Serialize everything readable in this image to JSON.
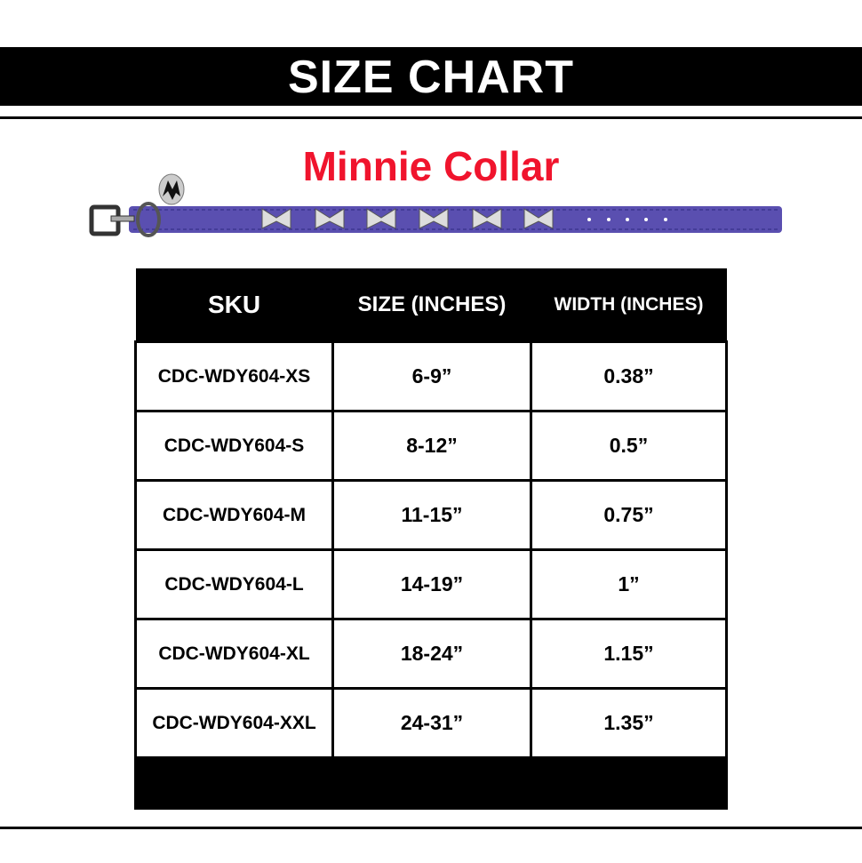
{
  "banner": {
    "title": "SIZE CHART"
  },
  "product": {
    "name": "Minnie Collar",
    "collar_color": "#5a4fb0",
    "title_color": "#f0142d"
  },
  "table": {
    "headers": [
      "SKU",
      "SIZE (INCHES)",
      "WIDTH (INCHES)"
    ],
    "rows": [
      [
        "CDC-WDY604-XS",
        "6-9”",
        "0.38”"
      ],
      [
        "CDC-WDY604-S",
        "8-12”",
        "0.5”"
      ],
      [
        "CDC-WDY604-M",
        "11-15”",
        "0.75”"
      ],
      [
        "CDC-WDY604-L",
        "14-19”",
        "1”"
      ],
      [
        "CDC-WDY604-XL",
        "18-24”",
        "1.15”"
      ],
      [
        "CDC-WDY604-XXL",
        "24-31”",
        "1.35”"
      ]
    ]
  }
}
